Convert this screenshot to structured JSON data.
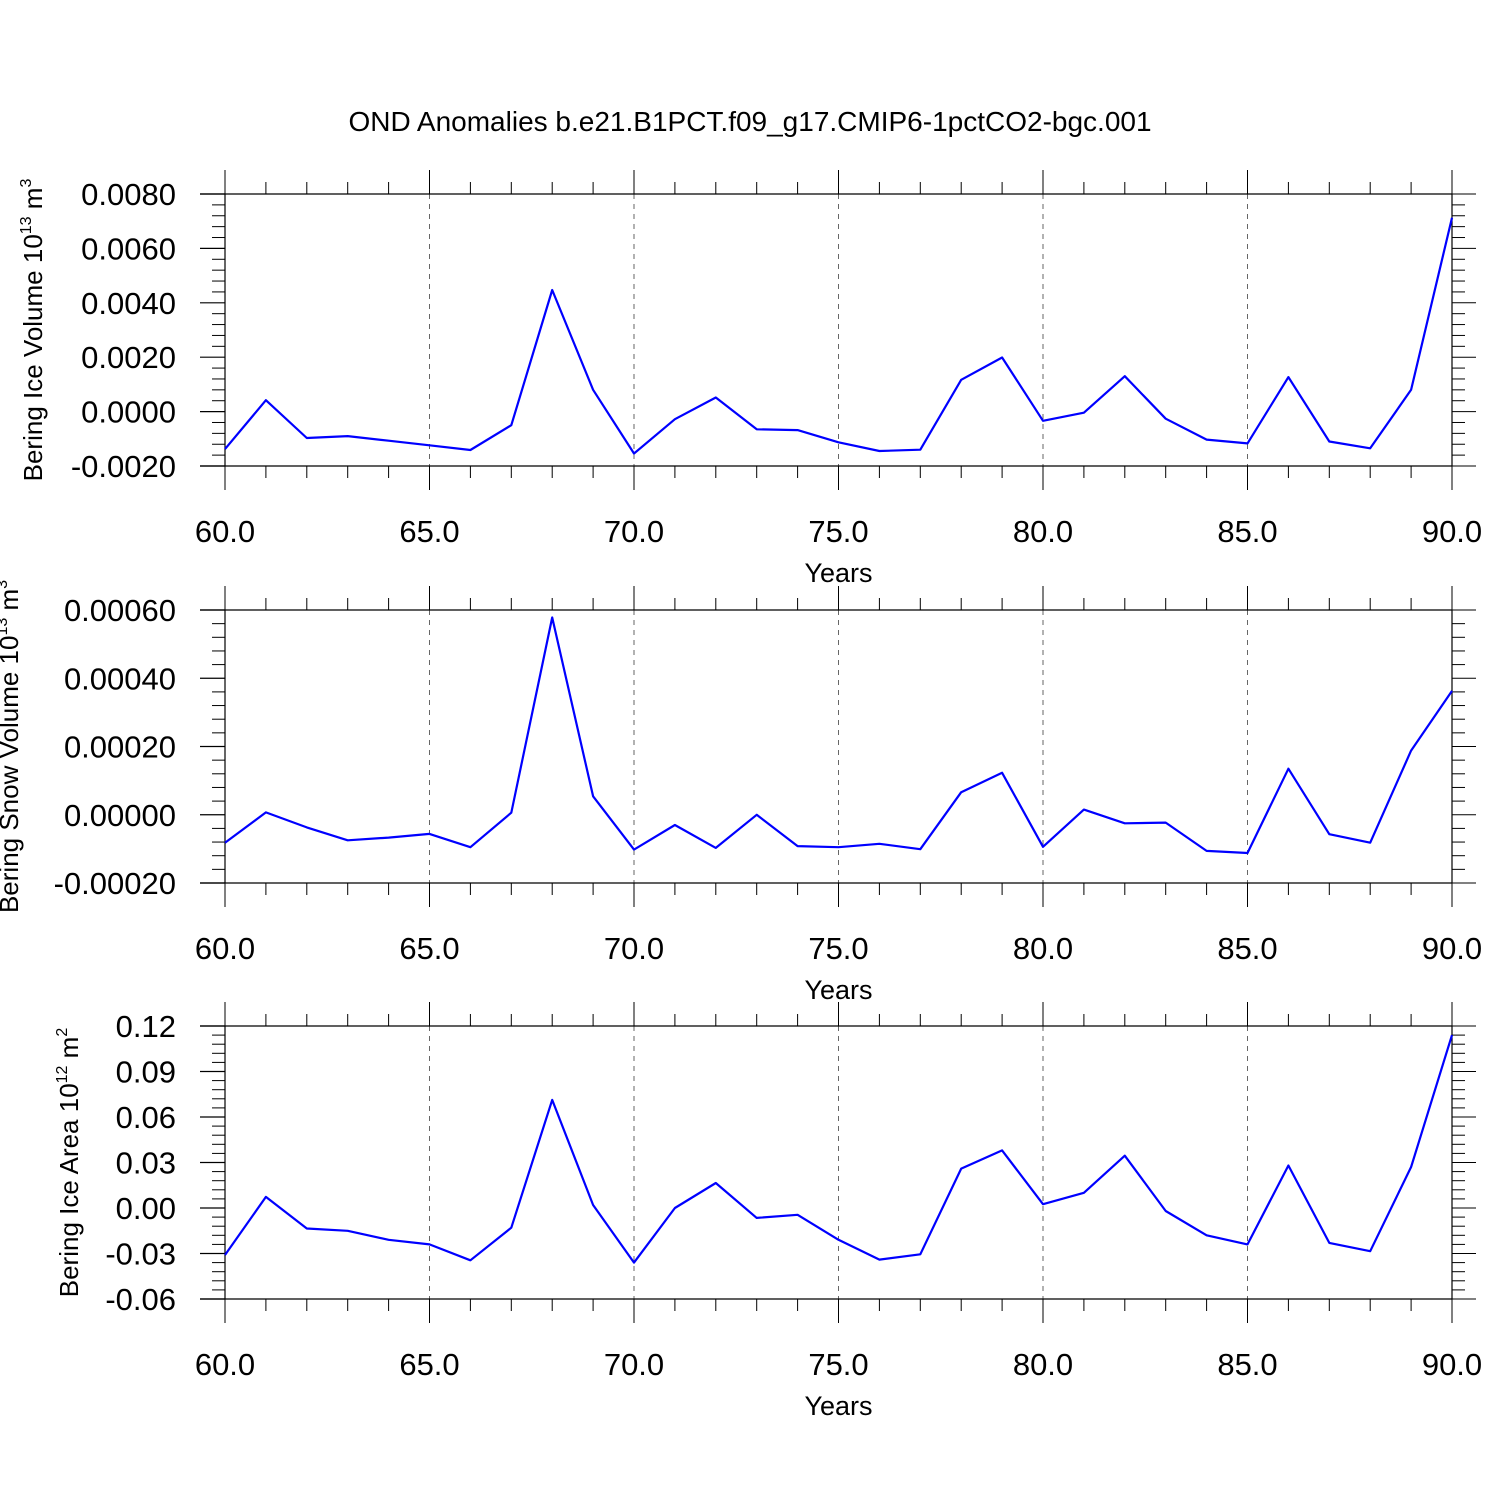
{
  "figure": {
    "title": "OND Anomalies b.e21.B1PCT.f09_g17.CMIP6-1pctCO2-bgc.001",
    "line_color": "#0000ff"
  },
  "chart_data": [
    {
      "type": "line",
      "xlabel": "Years",
      "ylabel": {
        "text": "Bering Ice Volume 10",
        "sup": "13",
        "unit": " m",
        "unit_sup": "3"
      },
      "xlim": [
        60,
        90
      ],
      "ylim": [
        -0.002,
        0.008
      ],
      "xticks": [
        60,
        65,
        70,
        75,
        80,
        85,
        90
      ],
      "xtick_labels": [
        "60.0",
        "65.0",
        "70.0",
        "75.0",
        "80.0",
        "85.0",
        "90.0"
      ],
      "yticks": [
        -0.002,
        0.0,
        0.002,
        0.004,
        0.006,
        0.008
      ],
      "ytick_labels": [
        "-0.0020",
        "0.0000",
        "0.0020",
        "0.0040",
        "0.0060",
        "0.0080"
      ],
      "x": [
        60,
        61,
        62,
        63,
        64,
        65,
        66,
        67,
        68,
        69,
        70,
        71,
        72,
        73,
        74,
        75,
        76,
        77,
        78,
        79,
        80,
        81,
        82,
        83,
        84,
        85,
        86,
        87,
        88,
        89,
        90
      ],
      "series": [
        {
          "values": [
            -0.00138,
            0.00042,
            -0.00097,
            -0.0009,
            -0.00107,
            -0.00124,
            -0.00141,
            -0.0005,
            0.00447,
            0.0008,
            -0.00154,
            -0.00028,
            0.00052,
            -0.00065,
            -0.00068,
            -0.00113,
            -0.00145,
            -0.0014,
            0.00117,
            0.00199,
            -0.00034,
            -4e-05,
            0.0013,
            -0.00026,
            -0.00103,
            -0.00117,
            0.00127,
            -0.0011,
            -0.00135,
            0.0008,
            0.00713
          ]
        }
      ]
    },
    {
      "type": "line",
      "xlabel": "Years",
      "ylabel": {
        "text": "Bering Snow Volume 10",
        "sup": "13",
        "unit": " m",
        "unit_sup": "3"
      },
      "xlim": [
        60,
        90
      ],
      "ylim": [
        -0.0002,
        0.0006
      ],
      "xticks": [
        60,
        65,
        70,
        75,
        80,
        85,
        90
      ],
      "xtick_labels": [
        "60.0",
        "65.0",
        "70.0",
        "75.0",
        "80.0",
        "85.0",
        "90.0"
      ],
      "yticks": [
        -0.0002,
        0.0,
        0.0002,
        0.0004,
        0.0006
      ],
      "ytick_labels": [
        "-0.00020",
        "0.00000",
        "0.00020",
        "0.00040",
        "0.00060"
      ],
      "x": [
        60,
        61,
        62,
        63,
        64,
        65,
        66,
        67,
        68,
        69,
        70,
        71,
        72,
        73,
        74,
        75,
        76,
        77,
        78,
        79,
        80,
        81,
        82,
        83,
        84,
        85,
        86,
        87,
        88,
        89,
        90
      ],
      "series": [
        {
          "values": [
            -8.2e-05,
            7e-06,
            -3.7e-05,
            -7.5e-05,
            -6.7e-05,
            -5.6e-05,
            -9.5e-05,
            6e-06,
            0.000578,
            5.4e-05,
            -0.000102,
            -3e-05,
            -9.7e-05,
            0.0,
            -9.2e-05,
            -9.5e-05,
            -8.5e-05,
            -0.000101,
            6.6e-05,
            0.000123,
            -9.4e-05,
            1.5e-05,
            -2.5e-05,
            -2.3e-05,
            -0.000106,
            -0.000112,
            0.000135,
            -5.7e-05,
            -8.2e-05,
            0.000188,
            0.000363
          ]
        }
      ]
    },
    {
      "type": "line",
      "xlabel": "Years",
      "ylabel": {
        "text": "Bering Ice Area 10",
        "sup": "12",
        "unit": " m",
        "unit_sup": "2"
      },
      "xlim": [
        60,
        90
      ],
      "ylim": [
        -0.06,
        0.12
      ],
      "xticks": [
        60,
        65,
        70,
        75,
        80,
        85,
        90
      ],
      "xtick_labels": [
        "60.0",
        "65.0",
        "70.0",
        "75.0",
        "80.0",
        "85.0",
        "90.0"
      ],
      "yticks": [
        -0.06,
        -0.03,
        0.0,
        0.03,
        0.06,
        0.09,
        0.12
      ],
      "ytick_labels": [
        "-0.06",
        "-0.03",
        "0.00",
        "0.03",
        "0.06",
        "0.09",
        "0.12"
      ],
      "x": [
        60,
        61,
        62,
        63,
        64,
        65,
        66,
        67,
        68,
        69,
        70,
        71,
        72,
        73,
        74,
        75,
        76,
        77,
        78,
        79,
        80,
        81,
        82,
        83,
        84,
        85,
        86,
        87,
        88,
        89,
        90
      ],
      "series": [
        {
          "values": [
            -0.031,
            0.0073,
            -0.0135,
            -0.015,
            -0.021,
            -0.024,
            -0.0345,
            -0.013,
            0.0713,
            0.002,
            -0.036,
            0.0,
            0.0165,
            -0.0065,
            -0.0045,
            -0.021,
            -0.034,
            -0.0305,
            0.026,
            0.038,
            0.0025,
            0.01,
            0.0345,
            -0.002,
            -0.018,
            -0.024,
            0.028,
            -0.023,
            -0.0285,
            0.027,
            0.114
          ]
        }
      ]
    }
  ]
}
